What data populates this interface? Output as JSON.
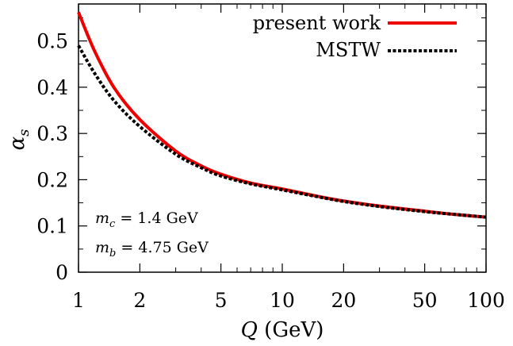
{
  "chart_data": {
    "type": "line",
    "x_scale": "log",
    "xlim": [
      1,
      100
    ],
    "ylim": [
      0,
      0.58
    ],
    "xlabel": "Q (GeV)",
    "ylabel": "αs",
    "xticks": [
      1,
      2,
      5,
      10,
      20,
      50,
      100
    ],
    "xtick_labels": [
      "1",
      "2",
      "5",
      "10",
      "20",
      "50",
      "100"
    ],
    "yticks": [
      0,
      0.1,
      0.2,
      0.3,
      0.4,
      0.5
    ],
    "ytick_labels": [
      "0",
      "0.1",
      "0.2",
      "0.3",
      "0.4",
      "0.5"
    ],
    "grid": false,
    "legend_position": "top-right",
    "series": [
      {
        "name": "present work",
        "color": "#ee0000",
        "style": "solid",
        "x": [
          1,
          1.2,
          1.5,
          2,
          3,
          4,
          5,
          7,
          10,
          15,
          20,
          30,
          50,
          70,
          100
        ],
        "y": [
          0.562,
          0.478,
          0.398,
          0.33,
          0.262,
          0.23,
          0.212,
          0.193,
          0.18,
          0.164,
          0.154,
          0.143,
          0.132,
          0.125,
          0.119
        ]
      },
      {
        "name": "MSTW",
        "color": "#000000",
        "style": "dashed",
        "x": [
          1,
          1.2,
          1.5,
          2,
          3,
          4,
          5,
          7,
          10,
          15,
          20,
          30,
          50,
          70,
          100
        ],
        "y": [
          0.49,
          0.43,
          0.37,
          0.315,
          0.255,
          0.226,
          0.208,
          0.191,
          0.178,
          0.163,
          0.153,
          0.142,
          0.131,
          0.125,
          0.119
        ]
      }
    ],
    "annotations": [
      "m_c = 1.4 GeV",
      "m_b = 4.75 GeV"
    ]
  }
}
